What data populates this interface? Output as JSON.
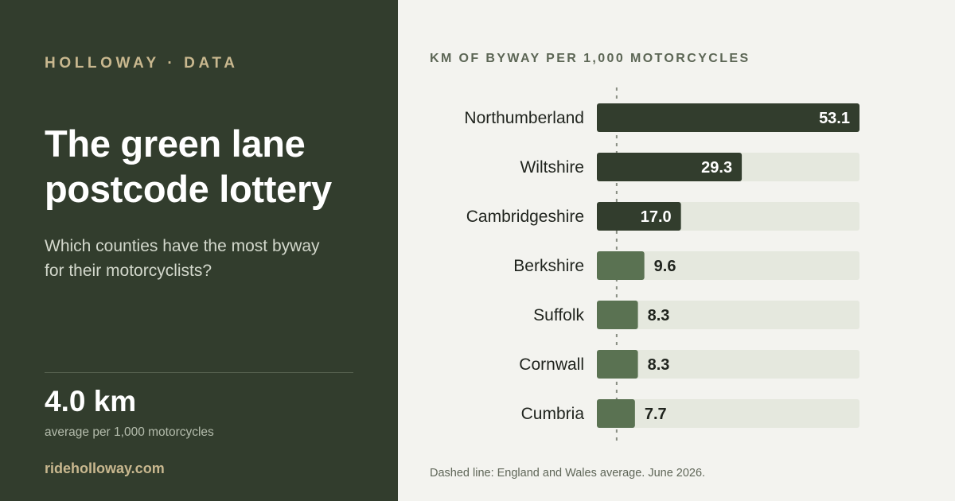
{
  "brand": "HOLLOWAY · DATA",
  "title": "The green lane postcode lottery",
  "subtitle": "Which counties have the most byway for their motorcyclists?",
  "stat": {
    "value": "4.0 km",
    "label": "average per 1,000 motorcycles"
  },
  "site": "rideholloway.com",
  "footnote": "Dashed line: England and Wales average. June 2026.",
  "colors": {
    "panel": "#323d2d",
    "accent": "#c9b88f",
    "bar_dark": "#323d2d",
    "bar_light": "#5a7252",
    "track": "#e5e8de"
  },
  "chart_data": {
    "type": "bar",
    "orientation": "horizontal",
    "title": "KM OF BYWAY PER 1,000 MOTORCYCLES",
    "categories": [
      "Northumberland",
      "Wiltshire",
      "Cambridgeshire",
      "Berkshire",
      "Suffolk",
      "Cornwall",
      "Cumbria"
    ],
    "values": [
      53.1,
      29.3,
      17.0,
      9.6,
      8.3,
      8.3,
      7.7
    ],
    "value_labels": [
      "53.1",
      "29.3",
      "17.0",
      "9.6",
      "8.3",
      "8.3",
      "7.7"
    ],
    "highlighted": [
      true,
      true,
      true,
      false,
      false,
      false,
      false
    ],
    "reference_line": {
      "value": 4.0
    },
    "xlim": [
      0,
      53.1
    ],
    "grid": false
  }
}
